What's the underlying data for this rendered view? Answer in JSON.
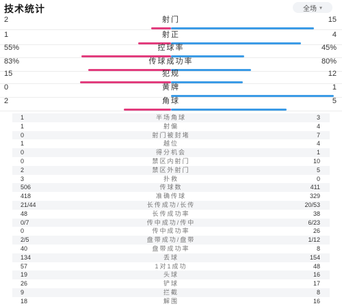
{
  "header": {
    "title": "技术统计",
    "filter_label": "全场"
  },
  "bars": [
    {
      "label": "射门",
      "left": "2",
      "right": "15",
      "left_share": 0.12,
      "right_share": 0.88
    },
    {
      "label": "射正",
      "left": "1",
      "right": "4",
      "left_share": 0.2,
      "right_share": 0.8
    },
    {
      "label": "控球率",
      "left": "55%",
      "right": "45%",
      "left_share": 0.55,
      "right_share": 0.45
    },
    {
      "label": "传球成功率",
      "left": "83%",
      "right": "80%",
      "left_share": 0.51,
      "right_share": 0.49
    },
    {
      "label": "犯规",
      "left": "15",
      "right": "12",
      "left_share": 0.56,
      "right_share": 0.44
    },
    {
      "label": "黄牌",
      "left": "0",
      "right": "1",
      "left_share": 0.0,
      "right_share": 1.0
    },
    {
      "label": "角球",
      "left": "2",
      "right": "5",
      "left_share": 0.29,
      "right_share": 0.71
    }
  ],
  "table": [
    {
      "left": "1",
      "label": "半场角球",
      "right": "3"
    },
    {
      "left": "1",
      "label": "射偏",
      "right": "4"
    },
    {
      "left": "0",
      "label": "射门被封堵",
      "right": "7"
    },
    {
      "left": "1",
      "label": "越位",
      "right": "4"
    },
    {
      "left": "0",
      "label": "得分机会",
      "right": "1"
    },
    {
      "left": "0",
      "label": "禁区内射门",
      "right": "10"
    },
    {
      "left": "2",
      "label": "禁区外射门",
      "right": "5"
    },
    {
      "left": "3",
      "label": "扑救",
      "right": "0"
    },
    {
      "left": "506",
      "label": "传球数",
      "right": "411"
    },
    {
      "left": "418",
      "label": "准确传球",
      "right": "329"
    },
    {
      "left": "21/44",
      "label": "长传成功/长传",
      "right": "20/53"
    },
    {
      "left": "48",
      "label": "长传成功率",
      "right": "38"
    },
    {
      "left": "0/7",
      "label": "传中成功/传中",
      "right": "6/23"
    },
    {
      "left": "0",
      "label": "传中成功率",
      "right": "26"
    },
    {
      "left": "2/5",
      "label": "盘带成功/盘带",
      "right": "1/12"
    },
    {
      "left": "40",
      "label": "盘带成功率",
      "right": "8"
    },
    {
      "left": "134",
      "label": "丢球",
      "right": "154"
    },
    {
      "left": "57",
      "label": "1对1成功",
      "right": "48"
    },
    {
      "left": "19",
      "label": "头球",
      "right": "16"
    },
    {
      "left": "26",
      "label": "铲球",
      "right": "17"
    },
    {
      "left": "9",
      "label": "拦截",
      "right": "8"
    },
    {
      "left": "18",
      "label": "解围",
      "right": "16"
    }
  ],
  "colors": {
    "home": "#e23c7d",
    "away": "#3b9be6"
  }
}
